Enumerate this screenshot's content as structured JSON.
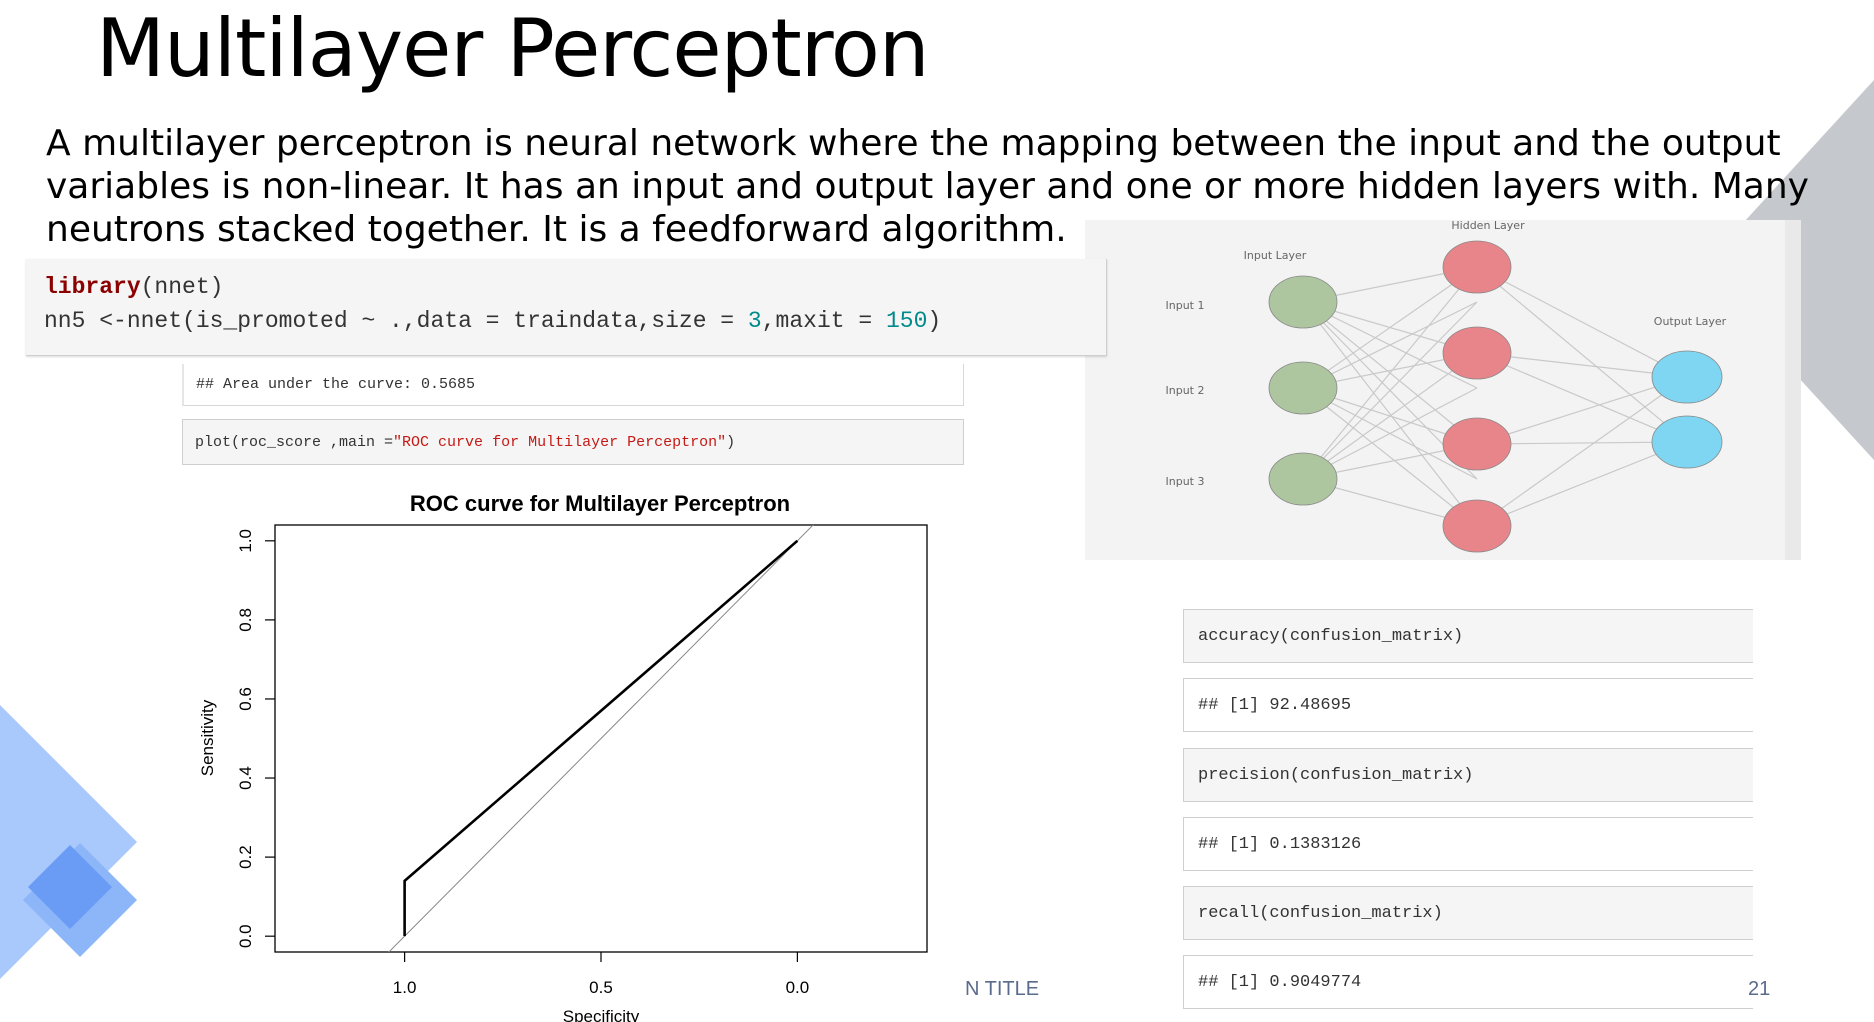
{
  "slide": {
    "title": "Multilayer Perceptron",
    "intro_lines": [
      "A multilayer perceptron is neural network where the mapping between the input and the output",
      "variables is non-linear. It has an input and output layer and one or more hidden layers with. Many",
      "neutrons stacked together. It is a feedforward algorithm."
    ],
    "footer_left": "N TITLE",
    "footer_right": "21"
  },
  "code_main": {
    "line1_kw": "library",
    "line1_rest": "(nnet)",
    "line2_a": "nn5 <-nnet(is_promoted ~ .,data = traindata,size = ",
    "line2_num1": "3",
    "line2_b": ",maxit = ",
    "line2_num2": "150",
    "line2_c": ")"
  },
  "auc_output": "## Area under the curve: 0.5685",
  "plot_call": {
    "a": "plot(roc_score ,main =",
    "str": "\"ROC curve for Multilayer Perceptron\"",
    "b": ")"
  },
  "metrics": [
    {
      "kind": "code",
      "text": "accuracy(confusion_matrix)"
    },
    {
      "kind": "out",
      "text": "## [1] 92.48695"
    },
    {
      "kind": "code",
      "text": "precision(confusion_matrix)"
    },
    {
      "kind": "out",
      "text": "## [1] 0.1383126"
    },
    {
      "kind": "code",
      "text": "recall(confusion_matrix)"
    },
    {
      "kind": "out",
      "text": "## [1] 0.9049774"
    }
  ],
  "network": {
    "input_layer_label": "Input Layer",
    "hidden_layer_label": "Hidden Layer",
    "output_layer_label": "Output Layer",
    "input_labels": [
      "Input 1",
      "Input 2",
      "Input 3"
    ],
    "colors": {
      "input": "#aec6a0",
      "hidden": "#e8858a",
      "output": "#7fd6f2"
    }
  },
  "chart_data": {
    "type": "line",
    "title": "ROC curve for Multilayer Perceptron",
    "xlabel": "Specificity",
    "ylabel": "Sensitivity",
    "x_ticks": [
      "1.0",
      "0.5",
      "0.0"
    ],
    "y_ticks": [
      "0.0",
      "0.2",
      "0.4",
      "0.6",
      "0.8",
      "1.0"
    ],
    "xlim": [
      1.33,
      -0.33
    ],
    "ylim": [
      -0.04,
      1.04
    ],
    "series": [
      {
        "x": [
          1.0,
          1.0,
          0.0
        ],
        "y": [
          0.0,
          0.14,
          1.0
        ]
      }
    ],
    "reference_line": {
      "x": [
        1.0,
        0.0
      ],
      "y": [
        0.0,
        1.0
      ]
    }
  }
}
